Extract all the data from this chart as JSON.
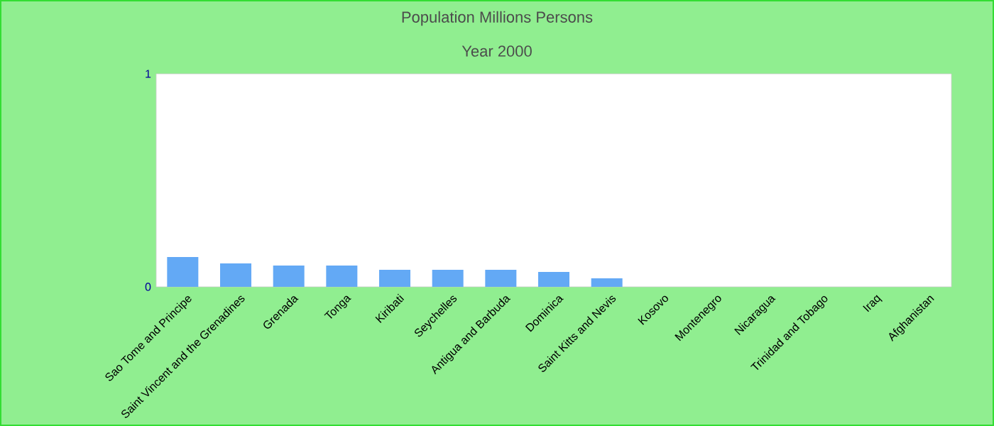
{
  "chart_data": {
    "type": "bar",
    "title": "Population Millions Persons",
    "subtitle": "Year 2000",
    "categories": [
      "Sao Tome and Principe",
      "Saint Vincent and the Grenadines",
      "Grenada",
      "Tonga",
      "Kiribati",
      "Seychelles",
      "Antigua and Barbuda",
      "Dominica",
      "Saint Kitts and Nevis",
      "Kosovo",
      "Montenegro",
      "Nicaragua",
      "Trinidad and Tobago",
      "Iraq",
      "Afghanistan"
    ],
    "values": [
      0.14,
      0.11,
      0.1,
      0.1,
      0.08,
      0.08,
      0.08,
      0.07,
      0.04,
      null,
      null,
      null,
      null,
      null,
      null
    ],
    "color": "#63a9f5",
    "ylim": [
      0,
      1
    ],
    "yticks": [
      0,
      1
    ],
    "grid": false
  }
}
